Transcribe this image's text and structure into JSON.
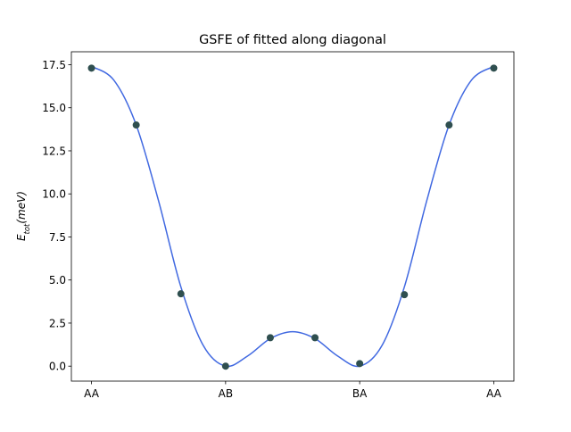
{
  "chart_data": {
    "type": "scatter",
    "title": "GSFE of fitted along diagonal",
    "xlabel": "",
    "ylabel": {
      "main": "E",
      "sub": "tot",
      "unit": "(meV)"
    },
    "x_ticks": [
      {
        "pos": 0,
        "label": "AA"
      },
      {
        "pos": 3,
        "label": "AB"
      },
      {
        "pos": 6,
        "label": "BA"
      },
      {
        "pos": 9,
        "label": "AA"
      }
    ],
    "y_ticks": [
      {
        "value": 0.0,
        "label": "0.0"
      },
      {
        "value": 2.5,
        "label": "2.5"
      },
      {
        "value": 5.0,
        "label": "5.0"
      },
      {
        "value": 7.5,
        "label": "7.5"
      },
      {
        "value": 10.0,
        "label": "10.0"
      },
      {
        "value": 12.5,
        "label": "12.5"
      },
      {
        "value": 15.0,
        "label": "15.0"
      },
      {
        "value": 17.5,
        "label": "17.5"
      }
    ],
    "xlim": [
      -0.45,
      9.45
    ],
    "ylim": [
      -0.87,
      18.25
    ],
    "series": [
      {
        "kind": "points",
        "x": [
          0,
          1,
          2,
          3,
          4,
          5,
          6,
          7,
          8,
          9
        ],
        "y": [
          17.3,
          14.0,
          4.2,
          0.0,
          1.65,
          1.65,
          0.15,
          4.15,
          14.0,
          17.3
        ]
      },
      {
        "kind": "fit-line",
        "x": [
          0,
          0.5,
          1,
          1.5,
          2,
          2.5,
          3,
          3.5,
          4,
          4.5,
          5,
          5.5,
          6,
          6.5,
          7,
          7.5,
          8,
          8.5,
          9
        ],
        "y": [
          17.4,
          16.6,
          14.0,
          9.6,
          4.6,
          1.2,
          0.0,
          0.6,
          1.6,
          2.0,
          1.6,
          0.6,
          0.0,
          1.2,
          4.6,
          9.6,
          14.0,
          16.6,
          17.4
        ]
      }
    ],
    "grid": false,
    "legend": "none",
    "colors": {
      "line": "#4169e1",
      "point": "#2f4f4f"
    }
  }
}
